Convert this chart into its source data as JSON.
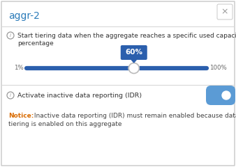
{
  "title": "aggr-2",
  "title_color": "#2b7bb9",
  "bg_color": "#ffffff",
  "border_color": "#c8c8c8",
  "section1_text_line1": "Start tiering data when the aggregate reaches a specific used capacity",
  "section1_text_line2": "percentage",
  "slider_min_label": "1%",
  "slider_max_label": "100%",
  "slider_value": 60,
  "slider_min": 1,
  "slider_max": 100,
  "slider_tooltip": "60%",
  "slider_color": "#2b5fad",
  "tooltip_bg": "#2b5fad",
  "tooltip_text_color": "#ffffff",
  "section2_text": "Activate inactive data reporting (IDR)",
  "toggle_on_color": "#5b9bd5",
  "notice_label": "Notice:",
  "notice_label_color": "#d96b00",
  "notice_text_line1": " Inactive data reporting (IDR) must remain enabled because data",
  "notice_text_line2": "tiering is enabled on this aggregate",
  "notice_text_color": "#444444",
  "info_icon_color": "#999999",
  "divider_color": "#d8d8d8",
  "close_btn_color": "#999999"
}
